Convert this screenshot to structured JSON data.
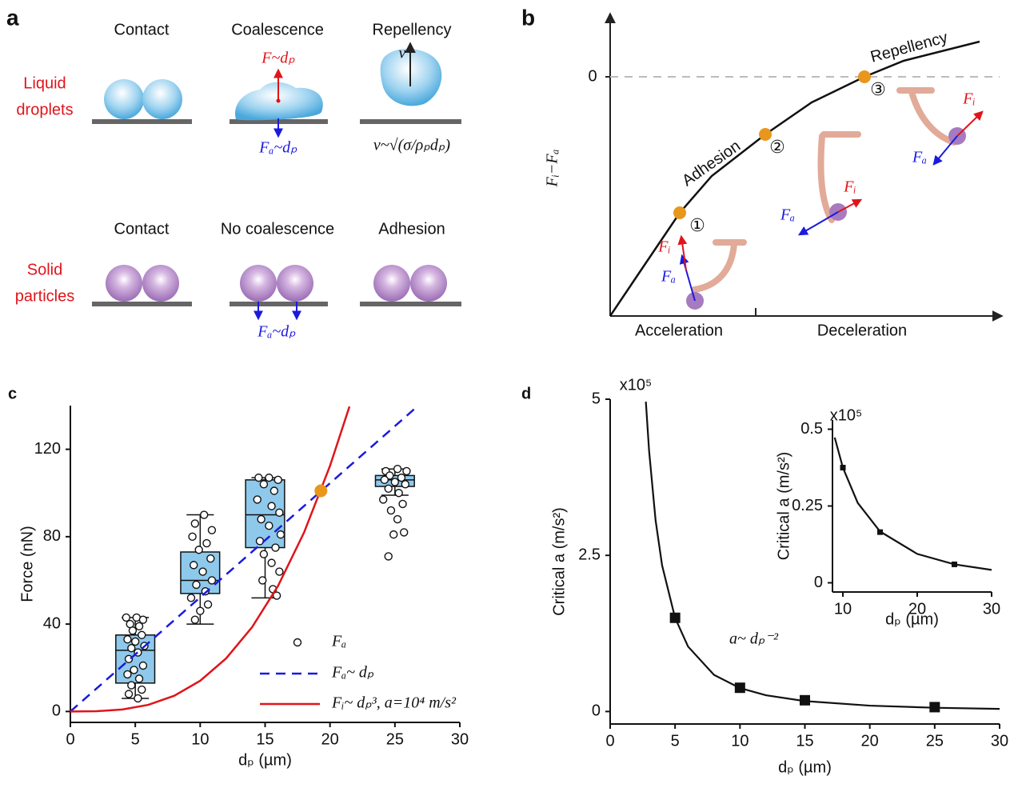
{
  "panel_a": {
    "label": "a",
    "rows": [
      {
        "label_lines": [
          "Liquid",
          "droplets"
        ],
        "columns": [
          "Contact",
          "Coalescence",
          "Repellency"
        ]
      },
      {
        "label_lines": [
          "Solid",
          "particles"
        ],
        "columns": [
          "Contact",
          "No coalescence",
          "Adhesion"
        ]
      }
    ],
    "annotations": {
      "coalescence_force": "F~dₚ",
      "coalescence_adhesion": "Fₐ~dₚ",
      "velocity": "v",
      "velocity_scaling": "v~√(σ/ρₚdₚ)",
      "particle_adhesion": "Fₐ~dₚ"
    }
  },
  "panel_b": {
    "label": "b",
    "ylabel": "Fᵢ−Fₐ",
    "zero_label": "0",
    "curve_labels": [
      "Adhesion",
      "Repellency"
    ],
    "stages": [
      "Acceleration",
      "Deceleration"
    ],
    "markers": [
      "①",
      "②",
      "③"
    ],
    "forces": [
      {
        "inertial": "Fᵢ",
        "adhesion": "Fₐ"
      },
      {
        "inertial": "Fᵢ",
        "adhesion": "Fₐ"
      },
      {
        "inertial": "Fᵢ",
        "adhesion": "Fₐ"
      }
    ]
  },
  "chart_data": [
    {
      "type": "box",
      "panel_label": "c",
      "xlabel": "dₚ (µm)",
      "ylabel": "Force (nN)",
      "xlim": [
        0,
        30
      ],
      "ylim": [
        -5,
        140
      ],
      "xticks": [
        0,
        5,
        10,
        15,
        20,
        25,
        30
      ],
      "yticks": [
        0,
        40,
        80,
        120
      ],
      "boxes": {
        "color": "#8ec9ec",
        "x": [
          5,
          10,
          15,
          25
        ],
        "whisker_low": [
          6,
          40,
          52,
          99
        ],
        "q1": [
          13,
          54,
          75,
          103
        ],
        "median": [
          28,
          60,
          90,
          106
        ],
        "q3": [
          35,
          73,
          106,
          108
        ],
        "whisker_high": [
          43,
          90,
          107,
          111
        ]
      },
      "series": [
        {
          "name": "Fₐ",
          "type": "scatter",
          "color": "#1a1adf",
          "x": [
            4.3,
            5.1,
            5.6,
            4.6,
            5.3,
            4.8,
            5.5,
            4.4,
            5.0,
            5.7,
            4.7,
            5.2,
            4.5,
            5.6,
            4.9,
            4.4,
            5.3,
            4.7,
            5.5,
            4.5,
            5.2,
            10.3,
            9.6,
            10.9,
            9.4,
            10.5,
            9.9,
            10.8,
            9.5,
            10.2,
            10.9,
            9.7,
            10.4,
            9.3,
            10.6,
            10.0,
            9.6,
            14.5,
            15.3,
            16.0,
            14.9,
            15.7,
            14.4,
            15.5,
            16.1,
            14.7,
            15.3,
            16.2,
            14.6,
            15.8,
            14.9,
            15.5,
            16.1,
            14.8,
            15.6,
            15.9,
            24.3,
            25.2,
            25.9,
            24.6,
            25.5,
            24.2,
            25.0,
            25.8,
            24.5,
            25.3,
            24.1,
            25.6,
            24.7,
            25.2,
            24.9,
            25.7,
            24.5
          ],
          "values": [
            43,
            43,
            42,
            40,
            39,
            37,
            35,
            33,
            32,
            30,
            29,
            27,
            24,
            21,
            19,
            17,
            15,
            12,
            10,
            8,
            6,
            90,
            86,
            83,
            80,
            77,
            74,
            70,
            67,
            64,
            60,
            58,
            55,
            52,
            49,
            46,
            42,
            107,
            107,
            106,
            104,
            101,
            97,
            94,
            91,
            88,
            85,
            81,
            78,
            75,
            72,
            68,
            64,
            60,
            56,
            53,
            110,
            111,
            110,
            108,
            107,
            106,
            105,
            104,
            102,
            100,
            97,
            95,
            92,
            88,
            81,
            82,
            71
          ]
        },
        {
          "name": "Fₐ~ dₚ",
          "type": "line",
          "dashed": true,
          "color": "#1a1adf",
          "x": [
            0,
            26.8
          ],
          "values": [
            0,
            140
          ]
        },
        {
          "name": "Fᵢ~ dₚ³, a=10⁴ m/s²",
          "type": "line",
          "dashed": false,
          "color": "#e0141a",
          "x": [
            0,
            2,
            4,
            6,
            8,
            10,
            12,
            14,
            16,
            18,
            20,
            21.5
          ],
          "values": [
            0,
            0.11,
            0.9,
            3.03,
            7.19,
            14.05,
            24.3,
            38.6,
            57.5,
            81.9,
            112.4,
            139.6
          ]
        }
      ],
      "highlight": {
        "x": 19.3,
        "y": 101,
        "color": "#e8961c"
      }
    },
    {
      "type": "line",
      "panel_label": "d",
      "multiplier_label": "x10⁵",
      "xlabel": "dₚ (µm)",
      "ylabel": "Critical a (m/s²)",
      "annotation": "a~ dₚ⁻²",
      "xlim": [
        0,
        30
      ],
      "ylim": [
        -0.2,
        5
      ],
      "xticks": [
        0,
        5,
        10,
        15,
        20,
        25,
        30
      ],
      "yticks": [
        0,
        2.5,
        5
      ],
      "curve": {
        "x": [
          2.75,
          3,
          3.5,
          4,
          5,
          6,
          8,
          10,
          12,
          15,
          20,
          25,
          30
        ],
        "values": [
          4.96,
          4.17,
          3.06,
          2.34,
          1.5,
          1.04,
          0.586,
          0.375,
          0.26,
          0.167,
          0.094,
          0.06,
          0.042
        ]
      },
      "markers": {
        "x": [
          5,
          10,
          15,
          25
        ],
        "values": [
          1.5,
          0.38,
          0.18,
          0.07
        ]
      }
    },
    {
      "type": "line",
      "inset": true,
      "multiplier_label": "x10⁵",
      "xlabel": "dₚ (µm)",
      "ylabel": "Critical a (m/s²)",
      "xlim": [
        8.6,
        30
      ],
      "ylim": [
        -0.03,
        0.53
      ],
      "xticks": [
        10,
        20,
        30
      ],
      "yticks": [
        0,
        0.25,
        0.5
      ],
      "curve": {
        "x": [
          8.9,
          10,
          12,
          15,
          20,
          25,
          30
        ],
        "values": [
          0.473,
          0.375,
          0.26,
          0.167,
          0.094,
          0.06,
          0.042
        ]
      },
      "markers": {
        "x": [
          10,
          15,
          25
        ],
        "values": [
          0.375,
          0.165,
          0.06
        ]
      }
    }
  ]
}
